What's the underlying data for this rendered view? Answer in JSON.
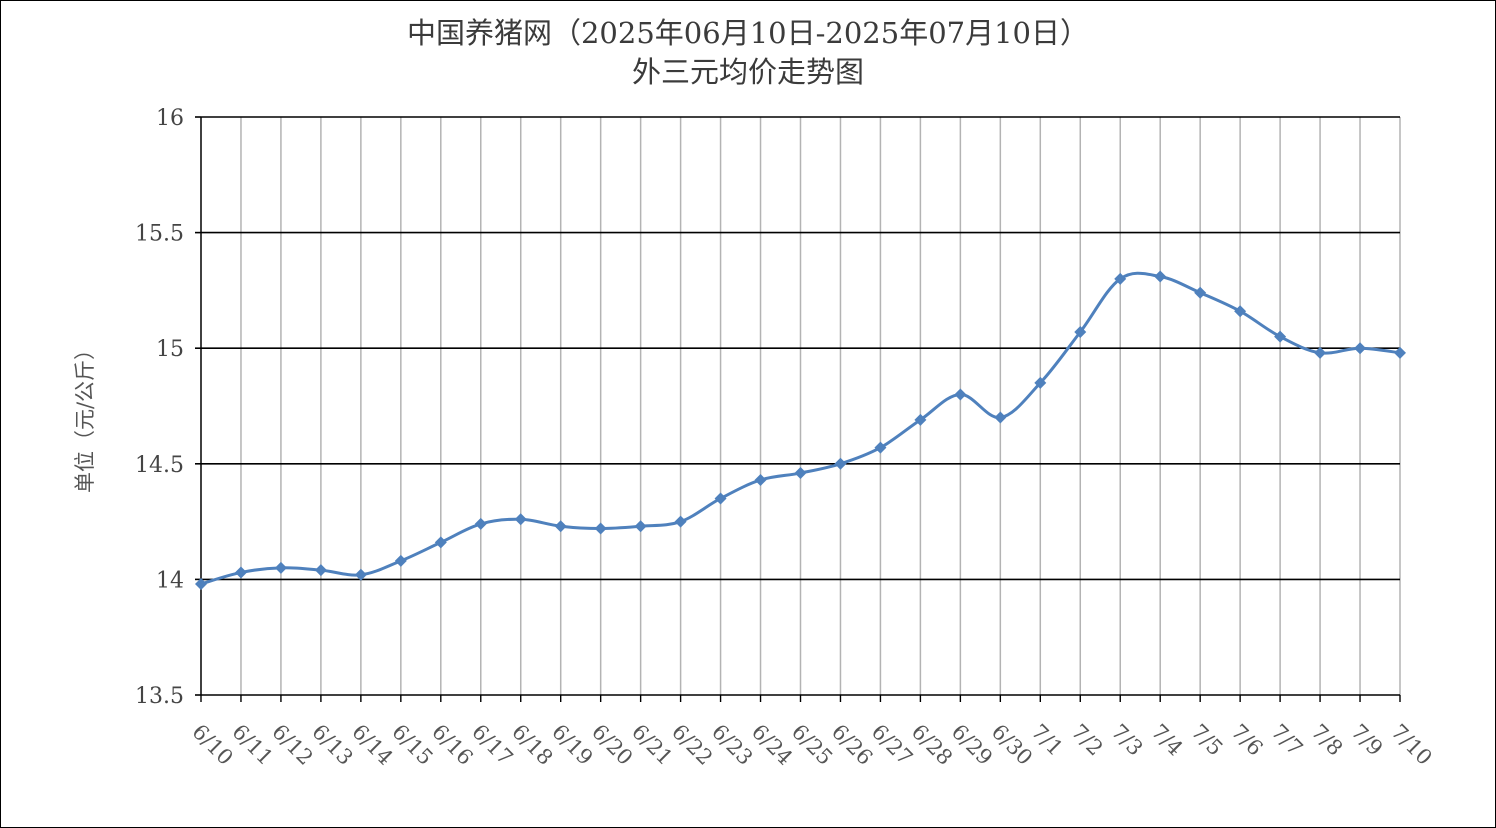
{
  "chart_data": {
    "type": "line",
    "title_line1": "中国养猪网（2025年06月10日-2025年07月10日）",
    "title_line2": "外三元均价走势图",
    "ylabel": "单位（元/公斤）",
    "xlabel": "",
    "ylim": [
      13.5,
      16
    ],
    "yticks": [
      13.5,
      14,
      14.5,
      15,
      15.5,
      16
    ],
    "ytick_labels": [
      "13.5",
      "14",
      "14.5",
      "15",
      "15.5",
      "16"
    ],
    "grid": true,
    "series_color": "#4f81bd",
    "categories": [
      "6/10",
      "6/11",
      "6/12",
      "6/13",
      "6/14",
      "6/15",
      "6/16",
      "6/17",
      "6/18",
      "6/19",
      "6/20",
      "6/21",
      "6/22",
      "6/23",
      "6/24",
      "6/25",
      "6/26",
      "6/27",
      "6/28",
      "6/29",
      "6/30",
      "7/1",
      "7/2",
      "7/3",
      "7/4",
      "7/5",
      "7/6",
      "7/7",
      "7/8",
      "7/9",
      "7/10"
    ],
    "series": [
      {
        "values": [
          13.98,
          14.03,
          14.05,
          14.04,
          14.02,
          14.08,
          14.16,
          14.24,
          14.26,
          14.23,
          14.22,
          14.23,
          14.25,
          14.35,
          14.43,
          14.46,
          14.5,
          14.57,
          14.69,
          14.8,
          14.7,
          14.85,
          15.07,
          15.3,
          15.31,
          15.24,
          15.16,
          15.05,
          14.98,
          15.0,
          14.98
        ]
      }
    ]
  }
}
